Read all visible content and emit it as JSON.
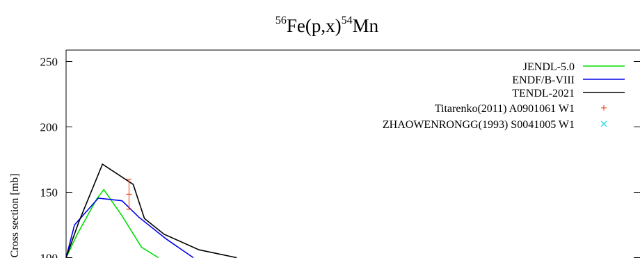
{
  "chart_data": {
    "type": "line",
    "title": {
      "pre_sup": "56",
      "base": "Fe(p,x)",
      "post_sup": "54",
      "tail": "Mn"
    },
    "ylabel": "Cross section [mb]",
    "xlabel": "",
    "ylim": [
      100,
      255
    ],
    "yticks": [
      100,
      150,
      200,
      250
    ],
    "grid": false,
    "legend_position": "top-right",
    "series": [
      {
        "name": "JENDL-5.0",
        "color": "#00dd00",
        "style": "line",
        "points": [
          [
            0.0,
            100
          ],
          [
            0.8,
            118
          ],
          [
            2.2,
            145
          ],
          [
            2.7,
            152
          ],
          [
            4.0,
            132
          ],
          [
            5.4,
            108
          ],
          [
            6.6,
            100
          ]
        ]
      },
      {
        "name": "ENDF/B-VIII",
        "color": "#0000ee",
        "style": "line",
        "points": [
          [
            0.0,
            100
          ],
          [
            0.6,
            125
          ],
          [
            2.3,
            145.5
          ],
          [
            4.0,
            143.5
          ],
          [
            5.2,
            131
          ],
          [
            7.2,
            114
          ],
          [
            9.1,
            100
          ]
        ]
      },
      {
        "name": "TENDL-2021",
        "color": "#000000",
        "style": "line",
        "points": [
          [
            0.0,
            100
          ],
          [
            0.9,
            127
          ],
          [
            2.6,
            171.5
          ],
          [
            4.8,
            156
          ],
          [
            5.6,
            130
          ],
          [
            7.0,
            118
          ],
          [
            9.5,
            106
          ],
          [
            12.2,
            100
          ]
        ]
      },
      {
        "name": "Titarenko(2011) A0901061 W1",
        "color": "#ee3300",
        "style": "errorbar",
        "points": [
          [
            4.5,
            148.5,
            11.5
          ]
        ]
      },
      {
        "name": "ZHAOWENRONGG(1993) S0041005 W1",
        "color": "#00d7e6",
        "style": "point",
        "points": []
      }
    ]
  }
}
